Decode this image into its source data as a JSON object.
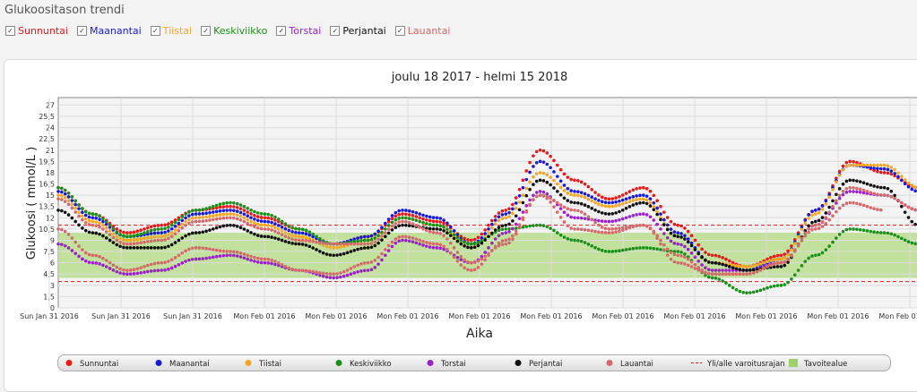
{
  "page": {
    "title": "Glukoositason trendi"
  },
  "day_toggles": [
    {
      "label": "Sunnuntai",
      "color": "#e8191b",
      "checked": true
    },
    {
      "label": "Maanantai",
      "color": "#1a1ad6",
      "checked": true
    },
    {
      "label": "Tiistai",
      "color": "#f5a623",
      "checked": true
    },
    {
      "label": "Keskiviikko",
      "color": "#1b8f1b",
      "checked": true
    },
    {
      "label": "Torstai",
      "color": "#9b22c9",
      "checked": true
    },
    {
      "label": "Perjantai",
      "color": "#111111",
      "checked": true
    },
    {
      "label": "Lauantai",
      "color": "#d46a6a",
      "checked": true
    }
  ],
  "chart_data": {
    "type": "scatter",
    "title": "joulu 18 2017 - helmi 15 2018",
    "xlabel": "Aika",
    "ylabel": "Glukoosi ( mmol/L )",
    "ylim": [
      0,
      28
    ],
    "yticks": [
      "0",
      "1,5",
      "3",
      "4,5",
      "6",
      "7,5",
      "9",
      "10,5",
      "12",
      "13,5",
      "15",
      "16,5",
      "18",
      "19,5",
      "21",
      "22,5",
      "24",
      "25,5",
      "27"
    ],
    "xticks": [
      "Sun Jan 31 2016",
      "Sun Jan 31 2016",
      "Sun Jan 31 2016",
      "Mon Feb 01 2016",
      "Mon Feb 01 2016",
      "Mon Feb 01 2016",
      "Mon Feb 01 2016",
      "Mon Feb 01 2016",
      "Mon Feb 01 2016",
      "Mon Feb 01 2016",
      "Mon Feb 01 2016",
      "Mon Feb 01 2016",
      "Mon Feb 01 2016"
    ],
    "xlim": [
      0,
      12.5
    ],
    "grid": true,
    "warning_limits": [
      3.5,
      11.0
    ],
    "target_range": [
      4.0,
      10.0
    ],
    "legend_position": "bottom",
    "series": [
      {
        "name": "Sunnuntai",
        "color": "#e8191b",
        "x": [
          0,
          0.5,
          1,
          1.5,
          2,
          2.5,
          3,
          3.5,
          4,
          4.5,
          5,
          5.5,
          6,
          6.5,
          7,
          7.5,
          8,
          8.5,
          9,
          9.5,
          10,
          10.5,
          11,
          11.5,
          12,
          12.5
        ],
        "y": [
          16,
          12.5,
          10,
          11,
          13,
          13.5,
          12,
          10.5,
          8.5,
          9.5,
          12.5,
          11.5,
          9,
          13,
          21,
          17,
          14.5,
          16,
          11,
          7,
          5.5,
          7,
          13,
          19.5,
          18,
          16
        ]
      },
      {
        "name": "Maanantai",
        "color": "#1a1ad6",
        "x": [
          0,
          0.5,
          1,
          1.5,
          2,
          2.5,
          3,
          3.5,
          4,
          4.5,
          5,
          5.5,
          6,
          6.5,
          7,
          7.5,
          8,
          8.5,
          9,
          9.5,
          10,
          10.5,
          11,
          11.5,
          12,
          12.5
        ],
        "y": [
          15.5,
          12,
          9.5,
          10,
          12.5,
          13,
          11.5,
          10,
          8.5,
          9.5,
          13,
          12,
          8.5,
          12.5,
          19.5,
          15.5,
          14,
          15,
          10,
          6,
          5,
          6.5,
          13,
          19,
          18.5,
          15.5
        ]
      },
      {
        "name": "Tiistai",
        "color": "#f5a623",
        "x": [
          0,
          0.5,
          1,
          1.5,
          2,
          2.5,
          3,
          3.5,
          4,
          4.5,
          5,
          5.5,
          6,
          6.5,
          7,
          7.5,
          8,
          8.5,
          9,
          9.5,
          10,
          10.5,
          11,
          11.5,
          12,
          12.5
        ],
        "y": [
          15,
          11.5,
          9,
          9.5,
          12,
          12.5,
          11,
          9.5,
          8,
          9,
          12,
          11,
          8,
          12,
          18,
          15,
          13.5,
          14.5,
          9.5,
          6,
          5.5,
          6.5,
          12.5,
          19,
          19,
          16
        ]
      },
      {
        "name": "Keskiviikko",
        "color": "#1b8f1b",
        "x": [
          0,
          0.5,
          1,
          1.5,
          2,
          2.5,
          3,
          3.5,
          4,
          4.5,
          5,
          5.5,
          6,
          6.5,
          7,
          7.5,
          8,
          8.5,
          9,
          9.5,
          10,
          10.5,
          11,
          11.5,
          12,
          12.5
        ],
        "y": [
          16,
          12.5,
          9.5,
          10.5,
          13,
          14,
          12.5,
          10.5,
          8.5,
          9,
          12,
          11,
          8.5,
          10.5,
          11,
          9,
          7.5,
          8,
          7.5,
          4,
          2,
          3,
          7,
          10.5,
          10,
          8.5
        ]
      },
      {
        "name": "Torstai",
        "color": "#9b22c9",
        "x": [
          0,
          0.5,
          1,
          1.5,
          2,
          2.5,
          3,
          3.5,
          4,
          4.5,
          5,
          5.5,
          6,
          6.5,
          7,
          7.5,
          8,
          8.5,
          9,
          9.5,
          10,
          10.5,
          11,
          11.5,
          12,
          12.5
        ],
        "y": [
          8.5,
          6,
          4.5,
          5,
          6.5,
          7,
          6,
          5,
          4,
          5,
          9,
          8,
          6,
          10,
          15.5,
          12,
          11.5,
          12.5,
          8.5,
          5,
          5,
          6,
          11,
          15.5,
          15,
          13
        ]
      },
      {
        "name": "Perjantai",
        "color": "#111111",
        "x": [
          0,
          0.5,
          1,
          1.5,
          2,
          2.5,
          3,
          3.5,
          4,
          4.5,
          5,
          5.5,
          6,
          6.5,
          7,
          7.5,
          8,
          8.5,
          9,
          9.5,
          10,
          10.5,
          11,
          11.5,
          12,
          12.5
        ],
        "y": [
          13,
          10,
          8,
          8,
          10,
          11,
          9.5,
          8.5,
          7,
          8,
          11,
          10.5,
          8,
          11,
          17,
          14,
          12.5,
          14,
          9.5,
          6,
          5,
          5.5,
          11.5,
          17,
          16,
          11
        ]
      },
      {
        "name": "Lauantai",
        "color": "#d46a6a",
        "x": [
          0,
          0.5,
          1,
          1.5,
          2,
          2.5,
          3,
          3.5,
          4,
          4.5,
          5,
          5.5,
          6,
          6.5,
          7,
          7.5,
          8,
          8.5,
          9,
          9.5,
          10,
          10.5,
          11,
          11.5,
          12,
          12.5
        ],
        "y": [
          14.5,
          11,
          8.5,
          9,
          11.5,
          12,
          10.5,
          9,
          8.5,
          8.5,
          11.5,
          10,
          6,
          8.5,
          15,
          10.5,
          10,
          11,
          7,
          4.5,
          4.5,
          6,
          11,
          16,
          15,
          13
        ]
      },
      {
        "name": "Lauantai",
        "color": "#d46a6a",
        "x": [
          0,
          0.5,
          1,
          1.5,
          2,
          2.5,
          3,
          3.5,
          4,
          4.5,
          5,
          5.5,
          6,
          6.5,
          7,
          7.5,
          8,
          8.5,
          9,
          9.5,
          10,
          10.5,
          11,
          11.5,
          12
        ],
        "y": [
          10.5,
          7,
          5,
          6,
          8,
          7.5,
          6.5,
          5,
          4.5,
          6,
          9.5,
          8.5,
          5,
          9,
          15,
          13,
          10.5,
          11,
          6,
          4.5,
          4.5,
          6,
          10.5,
          14,
          13
        ]
      }
    ],
    "legend": [
      {
        "label": "Sunnuntai",
        "color": "#e8191b",
        "kind": "dot"
      },
      {
        "label": "Maanantai",
        "color": "#1a1ad6",
        "kind": "dot"
      },
      {
        "label": "Tiistai",
        "color": "#f5a623",
        "kind": "dot"
      },
      {
        "label": "Keskiviikko",
        "color": "#1b8f1b",
        "kind": "dot"
      },
      {
        "label": "Torstai",
        "color": "#9b22c9",
        "kind": "dot"
      },
      {
        "label": "Perjantai",
        "color": "#111111",
        "kind": "dot"
      },
      {
        "label": "Lauantai",
        "color": "#d46a6a",
        "kind": "dot"
      },
      {
        "label": "Yli/alle varoitusrajan",
        "color": "#e8191b",
        "kind": "dash"
      },
      {
        "label": "Tavoitealue",
        "color": "#9ed16a",
        "kind": "area"
      }
    ]
  }
}
